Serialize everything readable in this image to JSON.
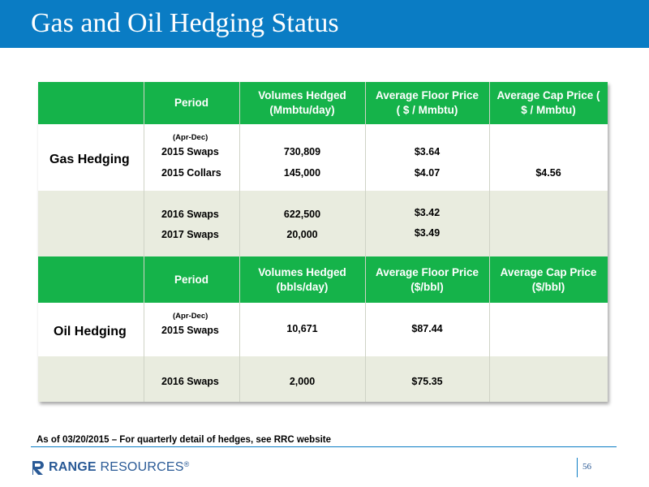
{
  "slide": {
    "title": "Gas and Oil Hedging Status",
    "footnote": "As of 03/20/2015 – For quarterly detail of hedges, see RRC website",
    "page_number": "56",
    "logo": {
      "bold_part": "RANGE",
      "light_part": "RESOURCES",
      "mark": "®"
    }
  },
  "colors": {
    "title_bar": "#0a7cc4",
    "header_green": "#15b34a",
    "band": "#e9ecdf",
    "logo_blue": "#2a5a96"
  },
  "gas": {
    "section_label": "Gas Hedging",
    "headers": {
      "period": "Period",
      "volumes": "Volumes Hedged (Mmbtu/day)",
      "floor": "Average Floor Price ( $ / Mmbtu)",
      "cap": "Average Cap Price ( $ / Mmbtu)"
    },
    "period_note": "(Apr-Dec)",
    "rows": [
      {
        "period": "2015 Swaps",
        "volume": "730,809",
        "floor": "$3.64",
        "cap": ""
      },
      {
        "period": "2015 Collars",
        "volume": "145,000",
        "floor": "$4.07",
        "cap": "$4.56"
      },
      {
        "period": "2016 Swaps",
        "volume": "622,500",
        "floor": "$3.42",
        "cap": ""
      },
      {
        "period": "2017 Swaps",
        "volume": "20,000",
        "floor": "$3.49",
        "cap": ""
      }
    ]
  },
  "oil": {
    "section_label": "Oil Hedging",
    "headers": {
      "period": "Period",
      "volumes": "Volumes Hedged (bbls/day)",
      "floor": "Average Floor Price ($/bbl)",
      "cap": "Average Cap Price ($/bbl)"
    },
    "period_note": "(Apr-Dec)",
    "rows": [
      {
        "period": "2015 Swaps",
        "volume": "10,671",
        "floor": "$87.44",
        "cap": ""
      },
      {
        "period": "2016 Swaps",
        "volume": "2,000",
        "floor": "$75.35",
        "cap": ""
      }
    ]
  }
}
